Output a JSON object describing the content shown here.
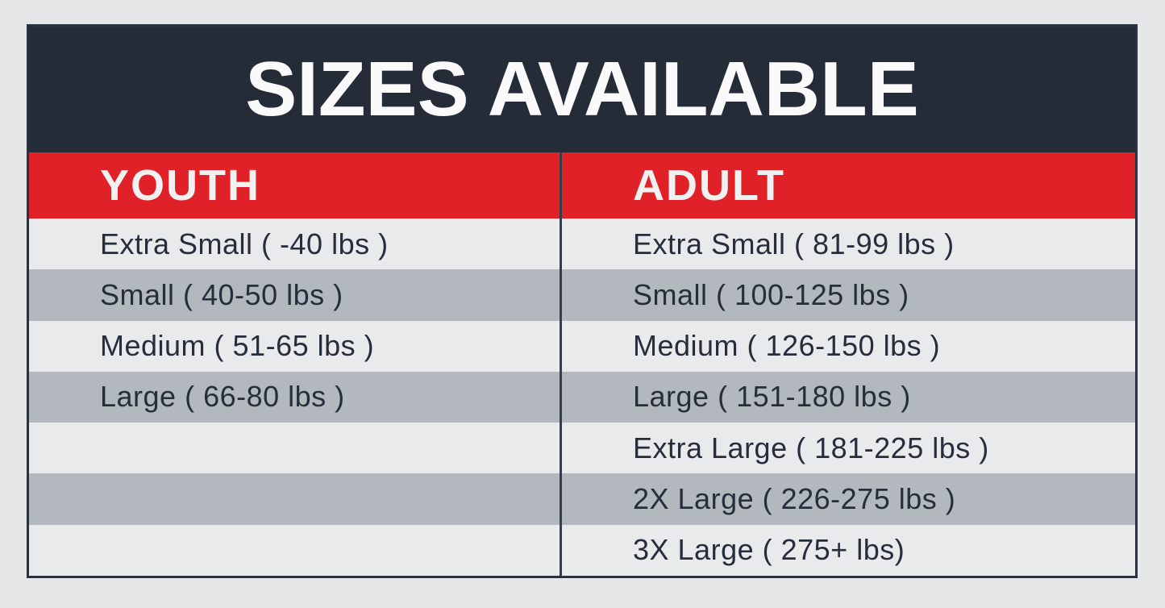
{
  "poster": {
    "title": "SIZES AVAILABLE"
  },
  "columns": [
    {
      "header": "YOUTH",
      "rows": [
        "Extra Small ( -40 lbs )",
        "Small ( 40-50 lbs )",
        "Medium ( 51-65 lbs )",
        "Large ( 66-80 lbs )",
        "",
        "",
        ""
      ]
    },
    {
      "header": "ADULT",
      "rows": [
        "Extra Small ( 81-99 lbs )",
        "Small ( 100-125 lbs )",
        "Medium ( 126-150 lbs )",
        "Large ( 151-180 lbs )",
        "Extra Large ( 181-225 lbs )",
        "2X Large ( 226-275 lbs )",
        "3X Large ( 275+ lbs)"
      ]
    }
  ],
  "colors": {
    "header_bg": "#252B37",
    "accent_red": "#E02127",
    "row_light": "#E9EAEC",
    "row_dark": "#B3B8BF",
    "text_dark": "#262E3C",
    "header_text": "#FAFAFB",
    "page_bg": "#E5E6E8",
    "border": "#2A3140"
  },
  "chart_data": {
    "type": "table",
    "title": "SIZES AVAILABLE",
    "columns": [
      "YOUTH",
      "ADULT"
    ],
    "rows": [
      [
        "Extra Small ( -40 lbs )",
        "Extra Small ( 81-99 lbs )"
      ],
      [
        "Small ( 40-50 lbs )",
        "Small ( 100-125 lbs )"
      ],
      [
        "Medium ( 51-65 lbs )",
        "Medium ( 126-150 lbs )"
      ],
      [
        "Large ( 66-80 lbs )",
        "Large ( 151-180 lbs )"
      ],
      [
        "",
        "Extra Large ( 181-225 lbs )"
      ],
      [
        "",
        "2X Large ( 226-275 lbs )"
      ],
      [
        "",
        "3X Large ( 275+ lbs)"
      ]
    ],
    "layout": {
      "legend": "none",
      "grid": "striped-rows",
      "youth_weight_ranges_lbs": [
        [
          null,
          40
        ],
        [
          40,
          50
        ],
        [
          51,
          65
        ],
        [
          66,
          80
        ]
      ],
      "adult_weight_ranges_lbs": [
        [
          81,
          99
        ],
        [
          100,
          125
        ],
        [
          126,
          150
        ],
        [
          151,
          180
        ],
        [
          181,
          225
        ],
        [
          226,
          275
        ],
        [
          275,
          null
        ]
      ]
    }
  }
}
